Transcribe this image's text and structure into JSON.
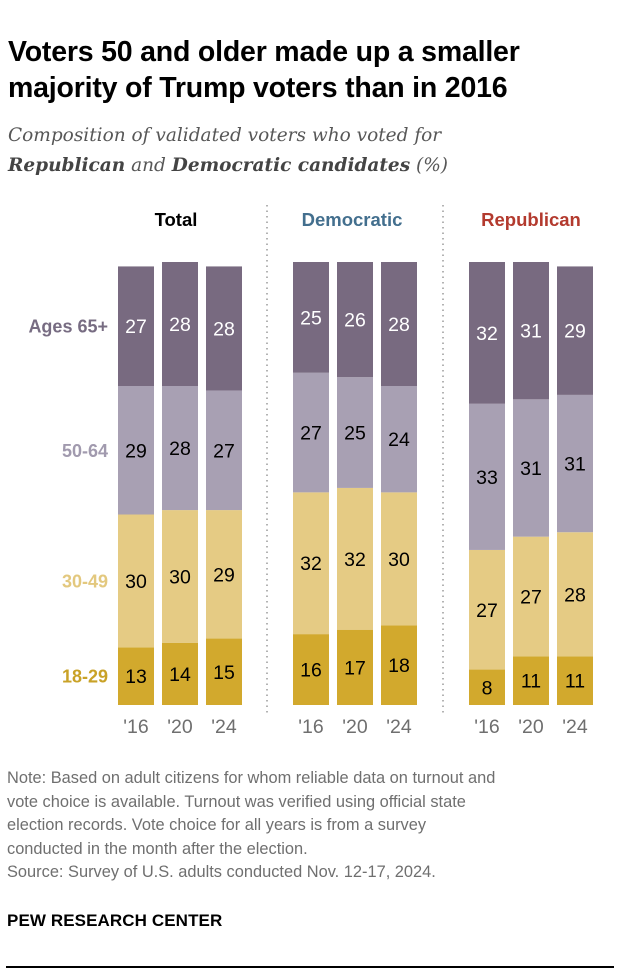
{
  "title_line1": "Voters 50 and older made up a smaller",
  "title_line2": "majority of Trump voters than in 2016",
  "subtitle": {
    "line1": "Composition of validated voters who voted for",
    "rep_word": "Republican",
    "and_word": " and ",
    "dem_word": "Democratic candidates",
    "suffix": " (%)"
  },
  "chart_data": {
    "type": "bar",
    "stacked": true,
    "unit": "%",
    "categories": [
      "'16",
      "'20",
      "'24"
    ],
    "panels": [
      {
        "name": "Total",
        "color": "#000000",
        "series": [
          {
            "name": "18-29",
            "values": [
              13,
              14,
              15
            ]
          },
          {
            "name": "30-49",
            "values": [
              30,
              30,
              29
            ]
          },
          {
            "name": "50-64",
            "values": [
              29,
              28,
              27
            ]
          },
          {
            "name": "Ages 65+",
            "values": [
              27,
              28,
              28
            ]
          }
        ]
      },
      {
        "name": "Democratic",
        "color": "#436f8e",
        "series": [
          {
            "name": "18-29",
            "values": [
              16,
              17,
              18
            ]
          },
          {
            "name": "30-49",
            "values": [
              32,
              32,
              30
            ]
          },
          {
            "name": "50-64",
            "values": [
              27,
              25,
              24
            ]
          },
          {
            "name": "Ages 65+",
            "values": [
              25,
              26,
              28
            ]
          }
        ]
      },
      {
        "name": "Republican",
        "color": "#b33a2e",
        "series": [
          {
            "name": "18-29",
            "values": [
              8,
              11,
              11
            ]
          },
          {
            "name": "30-49",
            "values": [
              27,
              27,
              28
            ]
          },
          {
            "name": "50-64",
            "values": [
              33,
              31,
              31
            ]
          },
          {
            "name": "Ages 65+",
            "values": [
              32,
              31,
              29
            ]
          }
        ]
      }
    ],
    "segment_colors": {
      "18-29": "#d2a92d",
      "30-49": "#e5cb84",
      "50-64": "#a8a0b3",
      "Ages 65+": "#786a80"
    },
    "label_colors": {
      "18-29": "#c9a227",
      "30-49": "#e3c87e",
      "50-64": "#a19aae",
      "Ages 65+": "#776c82"
    },
    "value_label_colors": {
      "18-29": "#000000",
      "30-49": "#000000",
      "50-64": "#000000",
      "Ages 65+": "#ffffff"
    }
  },
  "notes": [
    "Note: Based on adult citizens for whom reliable data on turnout and",
    "vote choice is available. Turnout was verified using official state",
    "election records. Vote choice for all years is from a survey",
    "conducted in the month after the election.",
    "Source: Survey of U.S. adults conducted Nov. 12-17, 2024."
  ],
  "brand": "PEW RESEARCH CENTER"
}
